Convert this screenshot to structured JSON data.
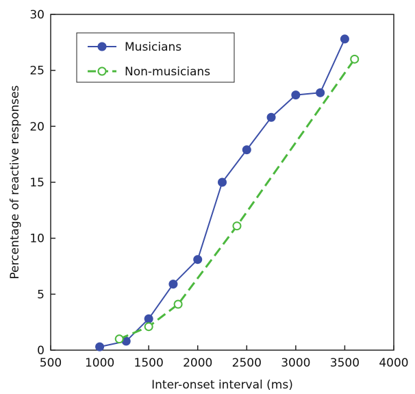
{
  "chart_data": {
    "type": "line",
    "xlabel": "Inter-onset interval (ms)",
    "ylabel": "Percentage of reactive responses",
    "xlim": [
      500,
      4000
    ],
    "ylim": [
      0,
      30
    ],
    "x_ticks": [
      500,
      1000,
      1500,
      2000,
      2500,
      3000,
      3500,
      4000
    ],
    "y_ticks": [
      0,
      5,
      10,
      15,
      20,
      25,
      30
    ],
    "grid": false,
    "legend_position": "top-left",
    "series": [
      {
        "name": "Musicians",
        "color": "#3b4fa8",
        "marker": "filled-circle",
        "line_style": "solid",
        "points": [
          {
            "x": 1000,
            "y": 0.3
          },
          {
            "x": 1270,
            "y": 0.8
          },
          {
            "x": 1500,
            "y": 2.8
          },
          {
            "x": 1750,
            "y": 5.9
          },
          {
            "x": 2000,
            "y": 8.1
          },
          {
            "x": 2250,
            "y": 15.0
          },
          {
            "x": 2500,
            "y": 17.9
          },
          {
            "x": 2750,
            "y": 20.8
          },
          {
            "x": 3000,
            "y": 22.8
          },
          {
            "x": 3250,
            "y": 23.0
          },
          {
            "x": 3500,
            "y": 27.8
          }
        ]
      },
      {
        "name": "Non-musicians",
        "color": "#4cb83e",
        "marker": "open-circle",
        "line_style": "dashed",
        "points": [
          {
            "x": 1200,
            "y": 1.0
          },
          {
            "x": 1500,
            "y": 2.1
          },
          {
            "x": 1800,
            "y": 4.1
          },
          {
            "x": 2400,
            "y": 11.1
          },
          {
            "x": 3600,
            "y": 26.0
          }
        ]
      }
    ]
  }
}
